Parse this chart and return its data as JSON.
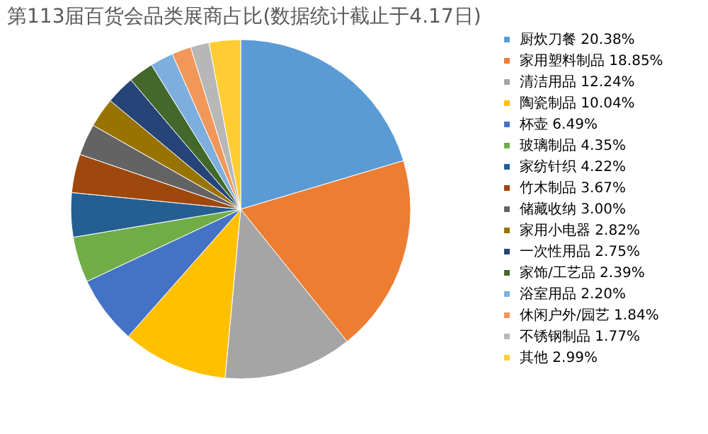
{
  "chart_data": {
    "type": "pie",
    "title": "第113届百货会品类展商占比(数据统计截止于4.17日)",
    "categories": [
      "厨炊刀餐 20.38%",
      "家用塑料制品 18.85%",
      "清洁用品 12.24%",
      "陶瓷制品 10.04%",
      "杯壶 6.49%",
      "玻璃制品 4.35%",
      "家纺针织 4.22%",
      "竹木制品 3.67%",
      "储藏收纳 3.00%",
      "家用小电器 2.82%",
      "一次性用品 2.75%",
      "家饰/工艺品 2.39%",
      "浴室用品 2.20%",
      "休闲户外/园艺 1.84%",
      "不锈钢制品 1.77%",
      "其他 2.99%"
    ],
    "values": [
      20.38,
      18.85,
      12.24,
      10.04,
      6.49,
      4.35,
      4.22,
      3.67,
      3.0,
      2.82,
      2.75,
      2.39,
      2.2,
      1.84,
      1.77,
      2.99
    ],
    "colors": [
      "#5b9bd5",
      "#ed7d31",
      "#a5a5a5",
      "#ffc000",
      "#4472c4",
      "#70ad47",
      "#255e91",
      "#9e480e",
      "#636363",
      "#997300",
      "#264478",
      "#43682b",
      "#7cafdd",
      "#f1975a",
      "#b7b7b7",
      "#ffcd33"
    ],
    "legend": "right"
  }
}
